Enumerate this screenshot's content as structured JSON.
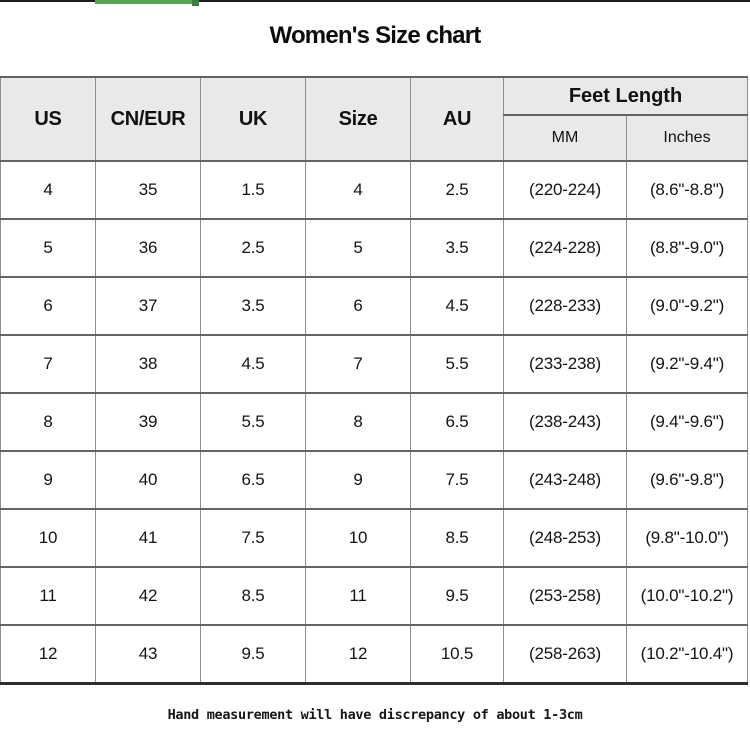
{
  "title": "Women's Size chart",
  "top_bar": {
    "line_color": "#1d1d1d",
    "green_bar_color": "#54a854",
    "green_tip_color": "#3c7e3e"
  },
  "colors": {
    "header_bg": "#e9e9e7",
    "vertical_border": "#8f8f8f",
    "horizontal_border": "#646464",
    "table_bottom_border": "#2e2e2e"
  },
  "chart_data": {
    "type": "table",
    "title": "Women's Size chart",
    "headers": {
      "us": "US",
      "cn_eur": "CN/EUR",
      "uk": "UK",
      "size": "Size",
      "au": "AU",
      "feet_length": "Feet Length",
      "mm": "MM",
      "inches": "Inches"
    },
    "columns": [
      "US",
      "CN/EUR",
      "UK",
      "Size",
      "AU",
      "Feet Length MM",
      "Feet Length Inches"
    ],
    "rows": [
      [
        "4",
        "35",
        "1.5",
        "4",
        "2.5",
        "(220-224)",
        "(8.6\"-8.8\")"
      ],
      [
        "5",
        "36",
        "2.5",
        "5",
        "3.5",
        "(224-228)",
        "(8.8\"-9.0\")"
      ],
      [
        "6",
        "37",
        "3.5",
        "6",
        "4.5",
        "(228-233)",
        "(9.0\"-9.2\")"
      ],
      [
        "7",
        "38",
        "4.5",
        "7",
        "5.5",
        "(233-238)",
        "(9.2\"-9.4\")"
      ],
      [
        "8",
        "39",
        "5.5",
        "8",
        "6.5",
        "(238-243)",
        "(9.4\"-9.6\")"
      ],
      [
        "9",
        "40",
        "6.5",
        "9",
        "7.5",
        "(243-248)",
        "(9.6\"-9.8\")"
      ],
      [
        "10",
        "41",
        "7.5",
        "10",
        "8.5",
        "(248-253)",
        "(9.8\"-10.0\")"
      ],
      [
        "11",
        "42",
        "8.5",
        "11",
        "9.5",
        "(253-258)",
        "(10.0\"-10.2\")"
      ],
      [
        "12",
        "43",
        "9.5",
        "12",
        "10.5",
        "(258-263)",
        "(10.2\"-10.4\")"
      ]
    ]
  },
  "footer_note": "Hand measurement will have discrepancy of about 1-3cm"
}
